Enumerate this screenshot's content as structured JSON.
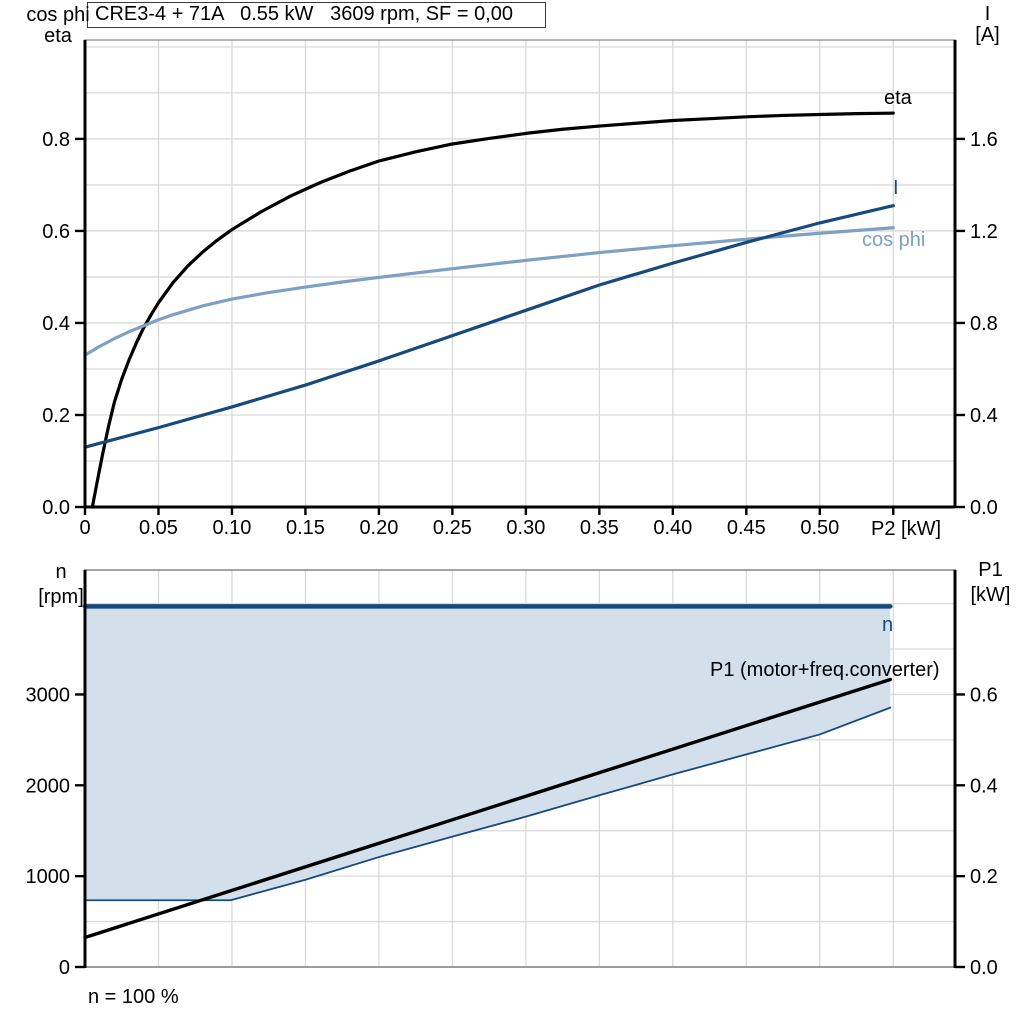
{
  "title": "CRE3-4 + 71A   0.55 kW   3609 rpm, SF = 0,00",
  "colors": {
    "black": "#000000",
    "dark_blue": "#17497D",
    "light_blue": "#7EA0C3",
    "fill_blue": "#D3DFEA",
    "grid": "#D9D9D9",
    "axis": "#000000",
    "frame_gray": "#8A8A8A",
    "bottom_axis_gray": "#9C9C9C"
  },
  "labels": {
    "top_left_1": "cos phi",
    "top_left_2": "eta",
    "top_right_1": "I",
    "top_right_2": "[A]",
    "x_axis": "P2 [kW]",
    "curve_eta": "eta",
    "curve_i": "I",
    "curve_cosphi": "cos phi",
    "bot_left_1": "n",
    "bot_left_2": "[rpm]",
    "bot_right_1": "P1",
    "bot_right_2": "[kW]",
    "curve_n": "n",
    "curve_p1": "P1 (motor+freq.converter)",
    "footnote": "n = 100 %"
  },
  "chart_data": [
    {
      "type": "line",
      "title": "CRE3-4 + 71A   0.55 kW   3609 rpm, SF = 0,00",
      "xlabel": "P2 [kW]",
      "x_range": [
        0,
        0.592
      ],
      "x_ticks": [
        0,
        0.05,
        0.1,
        0.15,
        0.2,
        0.25,
        0.3,
        0.35,
        0.4,
        0.45,
        0.5,
        0.55
      ],
      "x_tick_labels": [
        "0",
        "0.05",
        "0.10",
        "0.15",
        "0.20",
        "0.25",
        "0.30",
        "0.35",
        "0.40",
        "0.45",
        "0.50",
        ""
      ],
      "y_left": {
        "label": "cos phi / eta",
        "range": [
          0,
          1.015
        ],
        "ticks": [
          0,
          0.2,
          0.4,
          0.6,
          0.8
        ],
        "tick_labels": [
          "0.0",
          "0.2",
          "0.4",
          "0.6",
          "0.8"
        ],
        "grid_step": 0.1
      },
      "y_right": {
        "label": "I [A]",
        "range": [
          0,
          2.03
        ],
        "ticks": [
          0,
          0.4,
          0.8,
          1.2,
          1.6
        ],
        "tick_labels": [
          "0.0",
          "0.4",
          "0.8",
          "1.2",
          "1.6"
        ]
      },
      "grid": true,
      "legend_position": "inline-labels",
      "series": [
        {
          "name": "eta",
          "axis": "left",
          "color_key": "black",
          "width": 3.2,
          "points": [
            [
              0.005,
              0
            ],
            [
              0.008,
              0.05
            ],
            [
              0.012,
              0.115
            ],
            [
              0.016,
              0.175
            ],
            [
              0.02,
              0.228
            ],
            [
              0.025,
              0.278
            ],
            [
              0.03,
              0.32
            ],
            [
              0.035,
              0.357
            ],
            [
              0.04,
              0.39
            ],
            [
              0.045,
              0.418
            ],
            [
              0.05,
              0.444
            ],
            [
              0.06,
              0.488
            ],
            [
              0.07,
              0.524
            ],
            [
              0.08,
              0.554
            ],
            [
              0.09,
              0.58
            ],
            [
              0.1,
              0.603
            ],
            [
              0.12,
              0.642
            ],
            [
              0.14,
              0.676
            ],
            [
              0.16,
              0.705
            ],
            [
              0.18,
              0.73
            ],
            [
              0.2,
              0.752
            ],
            [
              0.225,
              0.772
            ],
            [
              0.25,
              0.789
            ],
            [
              0.275,
              0.801
            ],
            [
              0.3,
              0.812
            ],
            [
              0.325,
              0.821
            ],
            [
              0.35,
              0.828
            ],
            [
              0.375,
              0.834
            ],
            [
              0.4,
              0.84
            ],
            [
              0.425,
              0.844
            ],
            [
              0.45,
              0.848
            ],
            [
              0.475,
              0.851
            ],
            [
              0.5,
              0.853
            ],
            [
              0.525,
              0.855
            ],
            [
              0.55,
              0.856
            ]
          ]
        },
        {
          "name": "cos phi",
          "axis": "left",
          "color_key": "light_blue",
          "width": 3.2,
          "points": [
            [
              0,
              0.33
            ],
            [
              0.01,
              0.349
            ],
            [
              0.02,
              0.366
            ],
            [
              0.03,
              0.381
            ],
            [
              0.04,
              0.394
            ],
            [
              0.05,
              0.407
            ],
            [
              0.06,
              0.418
            ],
            [
              0.08,
              0.437
            ],
            [
              0.1,
              0.452
            ],
            [
              0.125,
              0.466
            ],
            [
              0.15,
              0.478
            ],
            [
              0.175,
              0.489
            ],
            [
              0.2,
              0.499
            ],
            [
              0.25,
              0.518
            ],
            [
              0.3,
              0.536
            ],
            [
              0.35,
              0.553
            ],
            [
              0.4,
              0.568
            ],
            [
              0.45,
              0.582
            ],
            [
              0.5,
              0.595
            ],
            [
              0.55,
              0.607
            ]
          ]
        },
        {
          "name": "I",
          "axis": "right",
          "color_key": "dark_blue",
          "width": 3.2,
          "points": [
            [
              0,
              0.26
            ],
            [
              0.05,
              0.345
            ],
            [
              0.1,
              0.435
            ],
            [
              0.15,
              0.53
            ],
            [
              0.2,
              0.635
            ],
            [
              0.25,
              0.745
            ],
            [
              0.3,
              0.855
            ],
            [
              0.35,
              0.965
            ],
            [
              0.4,
              1.06
            ],
            [
              0.45,
              1.15
            ],
            [
              0.5,
              1.235
            ],
            [
              0.55,
              1.31
            ]
          ]
        }
      ]
    },
    {
      "type": "line",
      "xlabel": "",
      "x_range": [
        0,
        0.592
      ],
      "x_ticks": [
        0,
        0.05,
        0.1,
        0.15,
        0.2,
        0.25,
        0.3,
        0.35,
        0.4,
        0.45,
        0.5,
        0.55
      ],
      "x_tick_labels": [],
      "y_left": {
        "label": "n [rpm]",
        "range": [
          0,
          4370
        ],
        "ticks": [
          0,
          1000,
          2000,
          3000
        ],
        "tick_labels": [
          "0",
          "1000",
          "2000",
          "3000"
        ],
        "grid_step": 500
      },
      "y_right": {
        "label": "P1 [kW]",
        "range": [
          0,
          0.874
        ],
        "ticks": [
          0,
          0.2,
          0.4,
          0.6
        ],
        "tick_labels": [
          "0.0",
          "0.2",
          "0.4",
          "0.6"
        ]
      },
      "grid": true,
      "footnote": "n = 100 %",
      "area": {
        "upper": "n",
        "lower": "speed range lower bound",
        "color_key": "fill_blue"
      },
      "series": [
        {
          "name": "speed range lower bound",
          "axis": "right",
          "color_key": "dark_blue",
          "width": 1.8,
          "points": [
            [
              0,
              0.147
            ],
            [
              0.099,
              0.147
            ],
            [
              0.15,
              0.192
            ],
            [
              0.2,
              0.242
            ],
            [
              0.25,
              0.287
            ],
            [
              0.3,
              0.331
            ],
            [
              0.35,
              0.378
            ],
            [
              0.4,
              0.424
            ],
            [
              0.45,
              0.468
            ],
            [
              0.5,
              0.512
            ],
            [
              0.548,
              0.571
            ]
          ]
        },
        {
          "name": "n",
          "axis": "left",
          "color_key": "dark_blue",
          "width": 4.5,
          "points": [
            [
              0,
              3970
            ],
            [
              0.548,
              3970
            ]
          ]
        },
        {
          "name": "P1 (motor+freq.converter)",
          "axis": "right",
          "color_key": "black",
          "width": 3.4,
          "points": [
            [
              0,
              0.065
            ],
            [
              0.548,
              0.633
            ]
          ]
        }
      ]
    }
  ]
}
